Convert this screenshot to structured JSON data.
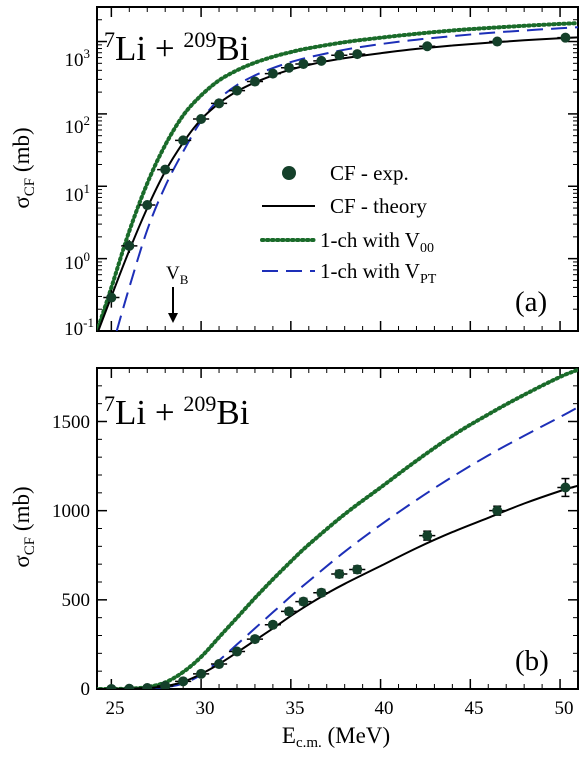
{
  "chart_data": [
    {
      "panel": "(a)",
      "type": "line",
      "y_scale": "log",
      "system_label": {
        "a1": "7",
        "base1": "Li + ",
        "a2": "209",
        "base2": "Bi"
      },
      "ylabel": {
        "main": "σ",
        "sub": "CF",
        "unit": " (mb)"
      },
      "xlim": [
        24.2,
        51
      ],
      "ylim": [
        0.1,
        3000
      ],
      "y_ticks": [
        {
          "value": 0.1,
          "base": "10",
          "exp": "-1"
        },
        {
          "value": 1,
          "base": "10",
          "exp": "0"
        },
        {
          "value": 10,
          "base": "10",
          "exp": "1"
        },
        {
          "value": 100,
          "base": "10",
          "exp": "2"
        },
        {
          "value": 1000,
          "base": "10",
          "exp": "3"
        }
      ],
      "annotation": {
        "main": "V",
        "sub": "B",
        "x": 28.3
      },
      "legend": [
        {
          "key": "exp",
          "text": "CF - exp."
        },
        {
          "key": "theory",
          "text": "CF - theory"
        },
        {
          "key": "v00",
          "main": "1-ch with V",
          "sub": "00"
        },
        {
          "key": "vpt",
          "main": "1-ch with V",
          "sub": "PT"
        }
      ]
    },
    {
      "panel": "(b)",
      "type": "line",
      "y_scale": "linear",
      "system_label": {
        "a1": "7",
        "base1": "Li + ",
        "a2": "209",
        "base2": "Bi"
      },
      "ylabel": {
        "main": "σ",
        "sub": "CF",
        "unit": " (mb)"
      },
      "xlabel": {
        "main": "E",
        "sub": "c.m.",
        "unit": " (MeV)"
      },
      "xlim": [
        24.2,
        51
      ],
      "ylim": [
        0,
        1800
      ],
      "x_ticks": [
        25,
        30,
        35,
        40,
        45,
        50
      ],
      "y_ticks": [
        0,
        500,
        1000,
        1500
      ]
    }
  ],
  "series": {
    "exp": {
      "name": "CF - exp.",
      "x": [
        25.0,
        26.0,
        27.0,
        28.0,
        29.0,
        30.0,
        31.0,
        32.0,
        33.0,
        34.0,
        34.9,
        35.7,
        36.7,
        37.7,
        38.7,
        42.6,
        46.5,
        50.3
      ],
      "y": [
        0.29,
        1.5,
        5.5,
        17,
        43,
        85,
        140,
        210,
        280,
        360,
        435,
        490,
        540,
        645,
        670,
        860,
        1000,
        1130
      ],
      "yerr": [
        0.08,
        0.3,
        0.6,
        1.5,
        4,
        8,
        10,
        12,
        15,
        15,
        18,
        18,
        18,
        20,
        20,
        25,
        25,
        50
      ],
      "xerr": 0.45
    },
    "theory": {
      "name": "CF - theory",
      "x": [
        24.2,
        25,
        26,
        27,
        28,
        29,
        30,
        31,
        32,
        33,
        34,
        35,
        36,
        37,
        38,
        40,
        42,
        44,
        46,
        48,
        50,
        51
      ],
      "y": [
        0.09,
        0.3,
        1.3,
        5,
        16,
        40,
        84,
        140,
        205,
        272,
        340,
        410,
        475,
        535,
        590,
        690,
        790,
        880,
        960,
        1040,
        1110,
        1140
      ]
    },
    "v00": {
      "name": "1-ch with V00",
      "x": [
        24.2,
        25,
        26,
        27,
        28,
        29,
        30,
        31,
        32,
        33,
        34,
        35,
        36,
        38,
        40,
        42,
        44,
        46,
        48,
        50,
        51
      ],
      "y": [
        0.1,
        0.4,
        2.4,
        11,
        37,
        95,
        180,
        290,
        400,
        510,
        615,
        715,
        810,
        980,
        1130,
        1280,
        1420,
        1540,
        1650,
        1750,
        1790
      ]
    },
    "vpt": {
      "name": "1-ch with VPT",
      "x": [
        25.3,
        26,
        27,
        28,
        29,
        30,
        31,
        32,
        33,
        34,
        35,
        36,
        38,
        40,
        42,
        44,
        46,
        48,
        50,
        51
      ],
      "y": [
        0.1,
        0.4,
        2.5,
        10,
        30,
        80,
        160,
        250,
        340,
        430,
        520,
        605,
        770,
        920,
        1060,
        1190,
        1310,
        1420,
        1525,
        1580
      ]
    }
  },
  "colors": {
    "theory": "#000000",
    "v00": "#1a6b2a",
    "vpt": "#1d2fb8",
    "exp": "#14402a"
  }
}
